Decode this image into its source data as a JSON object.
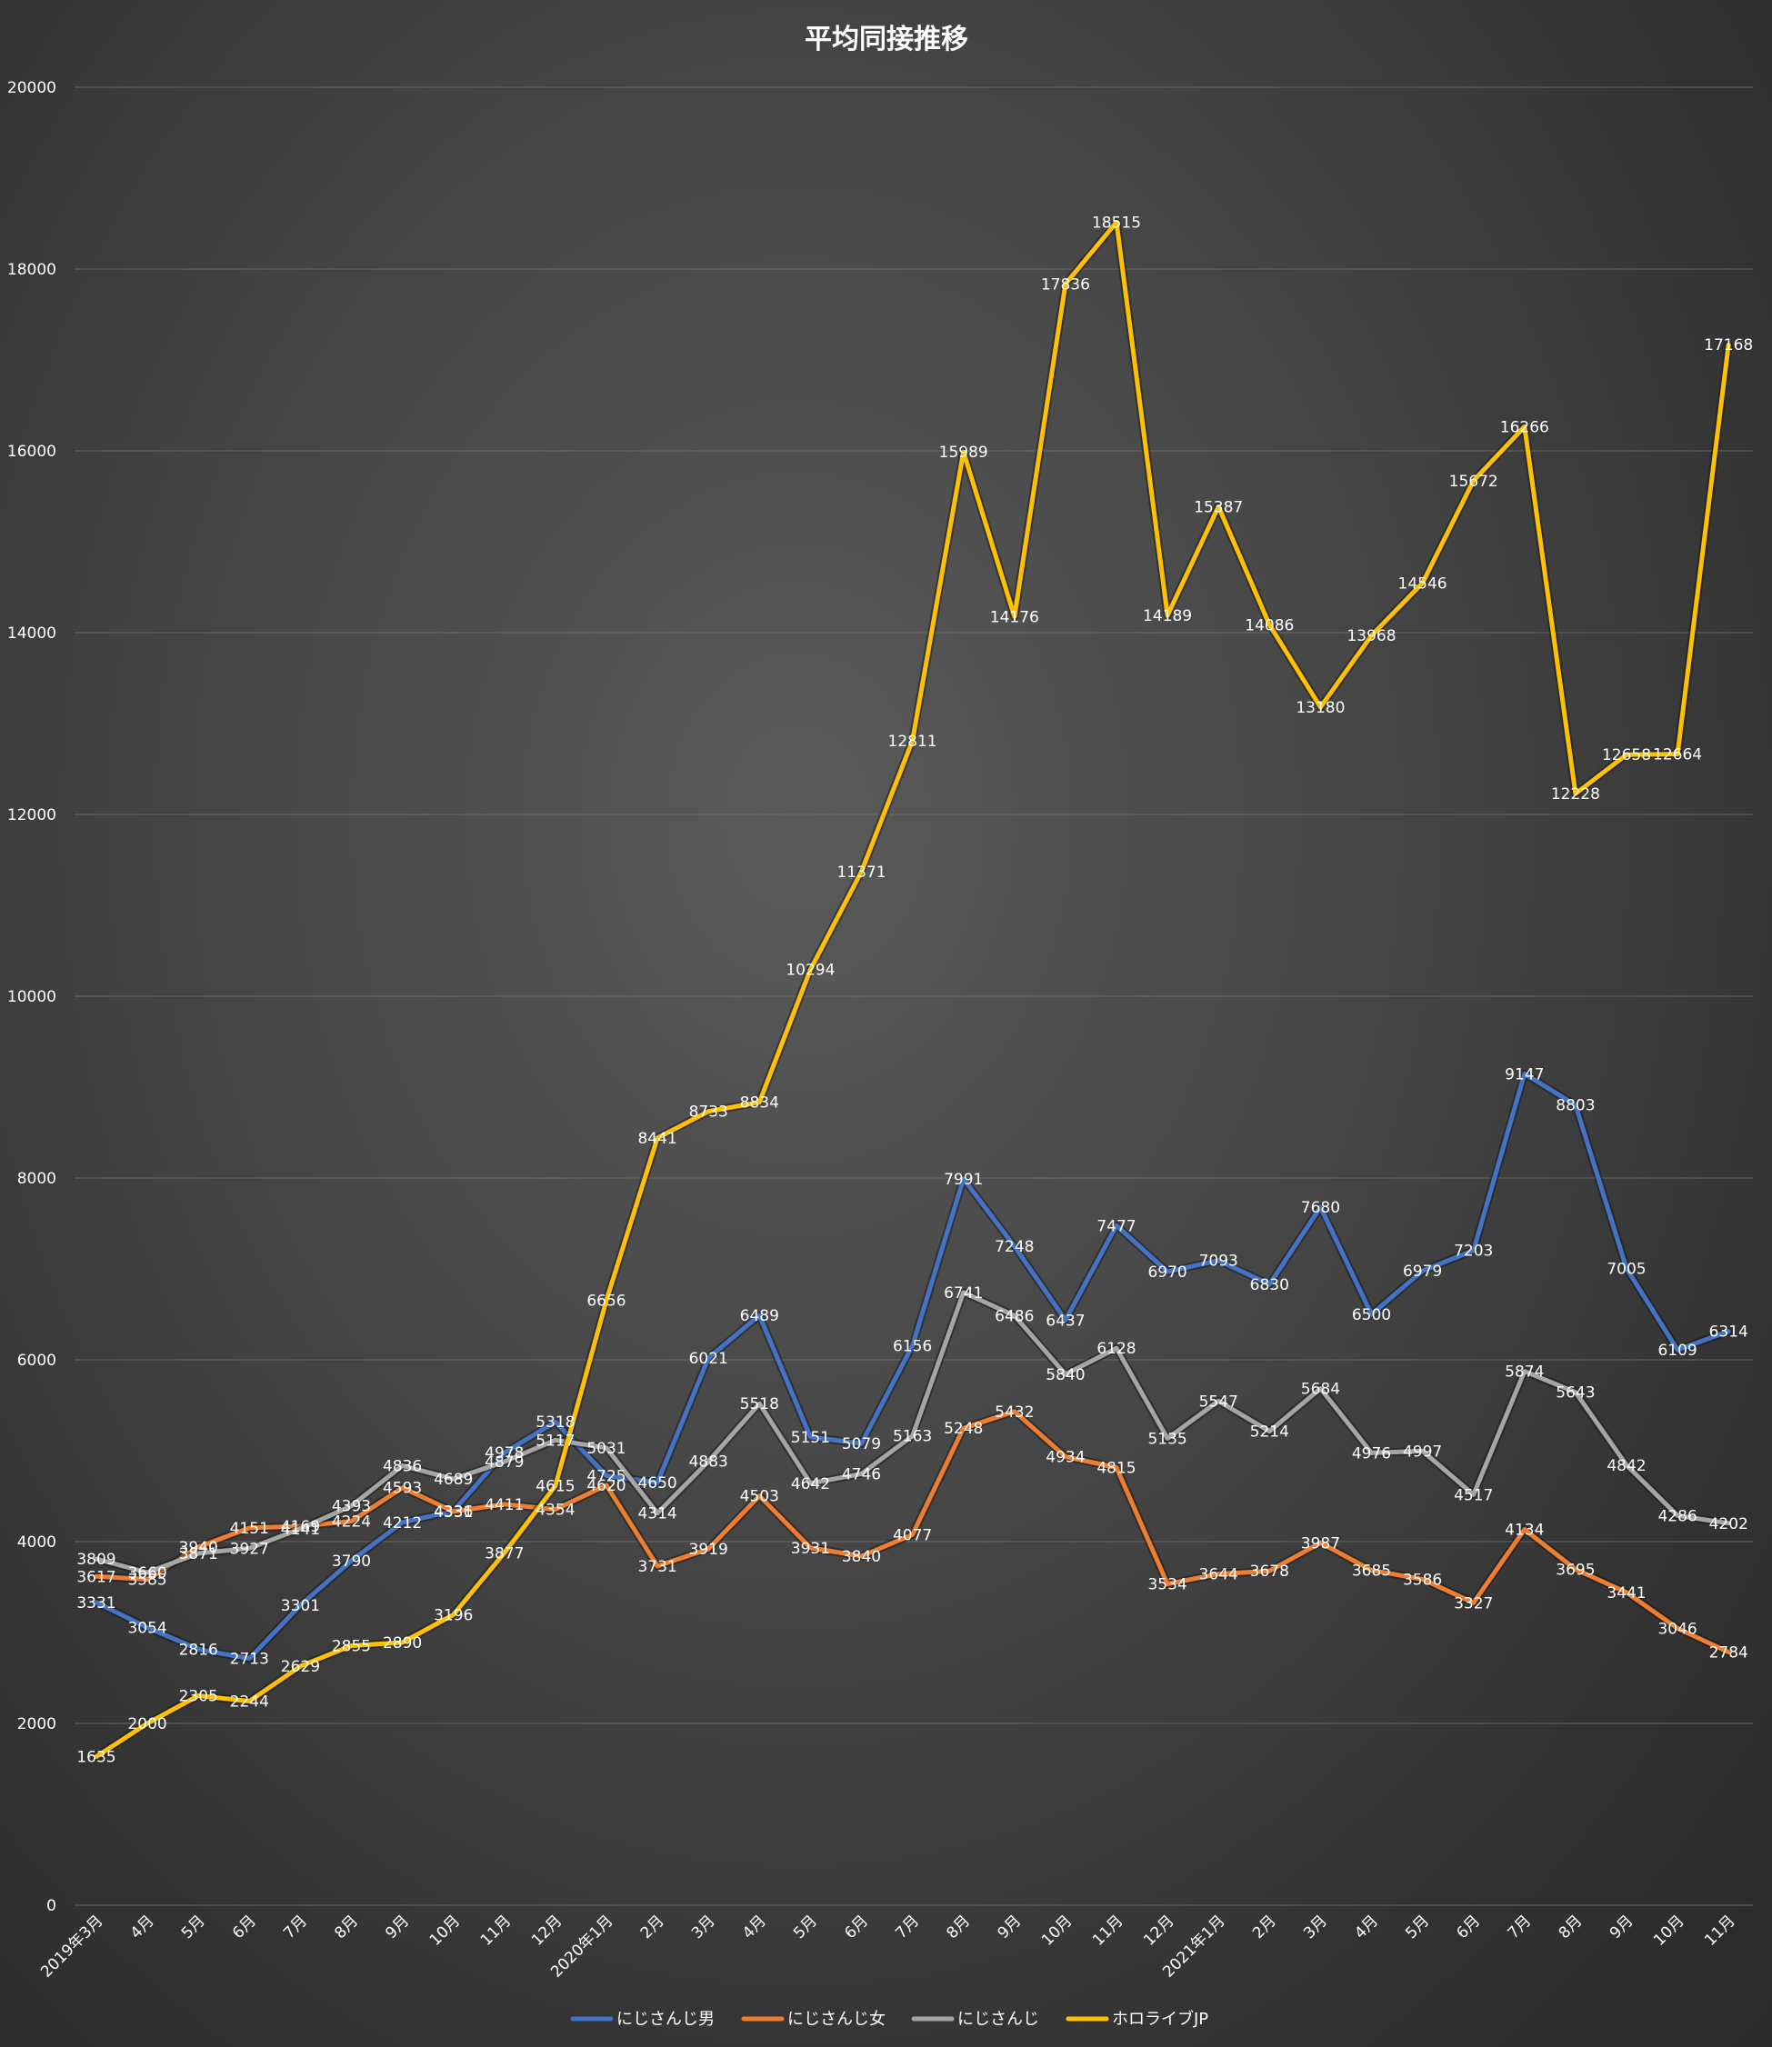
{
  "chart_data": {
    "type": "line",
    "title": "平均同接推移",
    "xlabel": "",
    "ylabel": "",
    "ylim": [
      0,
      20000
    ],
    "yticks": [
      "0",
      "2000",
      "4000",
      "6000",
      "8000",
      "10000",
      "12000",
      "14000",
      "16000",
      "18000",
      "20000"
    ],
    "grid": true,
    "legend_position": "bottom",
    "categories": [
      "2019年3月",
      "4月",
      "5月",
      "6月",
      "7月",
      "8月",
      "9月",
      "10月",
      "11月",
      "12月",
      "2020年1月",
      "2月",
      "3月",
      "4月",
      "5月",
      "6月",
      "7月",
      "8月",
      "9月",
      "10月",
      "11月",
      "12月",
      "2021年1月",
      "2月",
      "3月",
      "4月",
      "5月",
      "6月",
      "7月",
      "8月",
      "9月",
      "10月",
      "11月"
    ],
    "series": [
      {
        "name": "にじさんじ男",
        "color": "#4472c4",
        "values": [
          3331,
          3054,
          2816,
          2713,
          3301,
          3790,
          4212,
          4336,
          4978,
          5318,
          4725,
          4650,
          6021,
          6489,
          5151,
          5079,
          6156,
          7991,
          7248,
          6437,
          7477,
          6970,
          7093,
          6830,
          7680,
          6500,
          6979,
          7203,
          9147,
          8803,
          7005,
          6109,
          6314
        ]
      },
      {
        "name": "にじさんじ女",
        "color": "#ed7d31",
        "values": [
          3617,
          3585,
          3940,
          4151,
          4169,
          4224,
          4593,
          4331,
          4411,
          4354,
          4620,
          3731,
          3919,
          4503,
          3931,
          3840,
          4077,
          5248,
          5432,
          4934,
          4815,
          3534,
          3644,
          3678,
          3987,
          3685,
          3586,
          3327,
          4134,
          3695,
          3441,
          3046,
          2784
        ]
      },
      {
        "name": "にじさんじ",
        "color": "#a5a5a5",
        "values": [
          3809,
          3660,
          3871,
          3927,
          4141,
          4393,
          4836,
          4689,
          4879,
          5117,
          5031,
          4314,
          4883,
          5518,
          4642,
          4746,
          5163,
          6741,
          6486,
          5840,
          6128,
          5135,
          5547,
          5214,
          5684,
          4976,
          4997,
          4517,
          5874,
          5643,
          4842,
          4286,
          4202
        ]
      },
      {
        "name": "ホロライブJP",
        "color": "#ffc000",
        "values": [
          1635,
          2000,
          2305,
          2244,
          2629,
          2855,
          2890,
          3196,
          3877,
          4615,
          6656,
          8441,
          8733,
          8834,
          10294,
          11371,
          12811,
          15989,
          14176,
          17836,
          18515,
          14189,
          15387,
          14086,
          13180,
          13968,
          14546,
          15672,
          16266,
          12228,
          12658,
          12664,
          17168
        ]
      }
    ]
  }
}
